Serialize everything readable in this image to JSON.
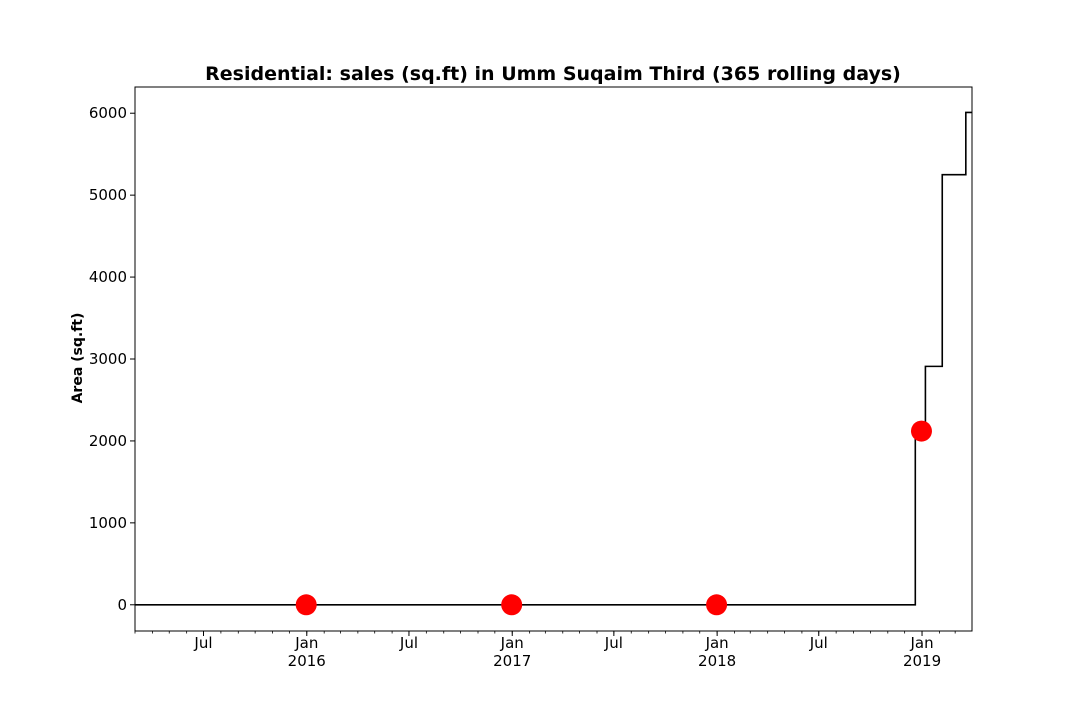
{
  "chart_data": {
    "type": "line",
    "title": "Residential: sales (sq.ft) in Umm Suqaim Third (365 rolling days)",
    "xlabel": "",
    "ylabel": "Area (sq.ft)",
    "xlim": [
      "2015-03-01",
      "2019-03-31"
    ],
    "ylim": [
      -320,
      6320
    ],
    "yticks": [
      0,
      1000,
      2000,
      3000,
      4000,
      5000,
      6000
    ],
    "xticks": [
      {
        "date": "2015-07-01",
        "label": "Jul",
        "sub": ""
      },
      {
        "date": "2016-01-01",
        "label": "Jan",
        "sub": "2016"
      },
      {
        "date": "2016-07-01",
        "label": "Jul",
        "sub": ""
      },
      {
        "date": "2017-01-01",
        "label": "Jan",
        "sub": "2017"
      },
      {
        "date": "2017-07-01",
        "label": "Jul",
        "sub": ""
      },
      {
        "date": "2018-01-01",
        "label": "Jan",
        "sub": "2018"
      },
      {
        "date": "2018-07-01",
        "label": "Jul",
        "sub": ""
      },
      {
        "date": "2019-01-01",
        "label": "Jan",
        "sub": "2019"
      }
    ],
    "grid": false,
    "series": [
      {
        "color": "#000000",
        "step": true,
        "points": [
          {
            "x": "2015-03-01",
            "y": 0
          },
          {
            "x": "2018-12-20",
            "y": 0
          },
          {
            "x": "2018-12-20",
            "y": 2120
          },
          {
            "x": "2019-01-07",
            "y": 2120
          },
          {
            "x": "2019-01-07",
            "y": 2910
          },
          {
            "x": "2019-02-06",
            "y": 2910
          },
          {
            "x": "2019-02-06",
            "y": 5250
          },
          {
            "x": "2019-03-20",
            "y": 5250
          },
          {
            "x": "2019-03-20",
            "y": 6010
          },
          {
            "x": "2019-03-31",
            "y": 6010
          }
        ]
      },
      {
        "color": "#ff0000",
        "marker": "circle",
        "points": [
          {
            "x": "2015-12-31",
            "y": 0
          },
          {
            "x": "2016-12-31",
            "y": 0
          },
          {
            "x": "2017-12-31",
            "y": 0
          },
          {
            "x": "2018-12-31",
            "y": 2120
          }
        ]
      }
    ]
  }
}
